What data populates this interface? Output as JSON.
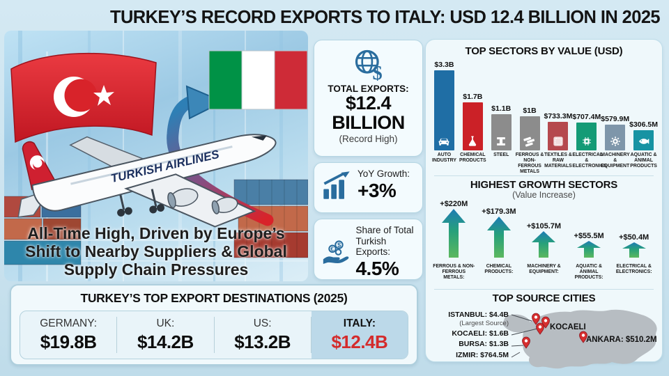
{
  "title": "TURKEY’S RECORD EXPORTS TO ITALY: USD 12.4 BILLION IN 2025",
  "colors": {
    "page_bg": "#cde4f0",
    "accent_red": "#d42b2b",
    "steel_blue": "#2a6d9e",
    "panel_bg": "#eff8fb",
    "panel_border": "#bedde9",
    "map_gray": "#b7bdc2",
    "pin_red": "#d62f2f"
  },
  "hero": {
    "tagline": "All-Time High, Driven by Europe’s Shift to Nearby Suppliers & Global Supply Chain Pressures",
    "plane_text": "TURKISH AIRLINES",
    "icons": [
      "turkey-flag-icon",
      "italy-flag-icon",
      "curved-arrow-icon",
      "airplane-icon",
      "cargo-containers-icon"
    ]
  },
  "stats": [
    {
      "label": "TOTAL EXPORTS:",
      "value_line1": "$12.4",
      "value_line2": "BILLION",
      "note": "(Record High)",
      "icon": "globe-dollar-icon"
    },
    {
      "label": "YoY Growth:",
      "value": "+3%",
      "icon": "growth-chart-icon"
    },
    {
      "label_line1": "Share of Total",
      "label_line2": "Turkish Exports:",
      "value": "4.5%",
      "icon": "hand-coins-icon"
    }
  ],
  "destinations": {
    "title": "TURKEY’S TOP EXPORT DESTINATIONS (2025)",
    "items": [
      {
        "label": "GERMANY:",
        "value": "$19.8B",
        "highlight": false
      },
      {
        "label": "UK:",
        "value": "$14.2B",
        "highlight": false
      },
      {
        "label": "US:",
        "value": "$13.2B",
        "highlight": false
      },
      {
        "label": "ITALY:",
        "value": "$12.4B",
        "highlight": true
      }
    ]
  },
  "chart_data": [
    {
      "type": "bar",
      "title": "TOP SECTORS BY VALUE (USD)",
      "categories": [
        "AUTO INDUSTRY",
        "CHEMICAL PRODUCTS",
        "STEEL",
        "FERROUS & NON-FERROUS METALS",
        "TEXTILES & RAW MATERIALS",
        "ELECTRICAL & ELECTRONICS",
        "MACHINERY & EQUIPMENT",
        "AQUATIC & ANIMAL PRODUCTS"
      ],
      "values_usd_millions": [
        3300,
        1700,
        1100,
        1000,
        733.3,
        707.4,
        579.9,
        306.5
      ],
      "value_labels": [
        "$3.3B",
        "$1.7B",
        "$1.1B",
        "$1B",
        "$733.3M",
        "$707.4M",
        "$579.9M",
        "$306.5M"
      ],
      "bar_colors": [
        "#1f6ea5",
        "#cb2127",
        "#8c8c8c",
        "#8c8c8c",
        "#b5494e",
        "#149b76",
        "#7e96aa",
        "#1793a3"
      ],
      "icons": [
        "car-icon",
        "flask-icon",
        "steel-beam-icon",
        "metal-ingots-icon",
        "textile-icon",
        "chip-icon",
        "gear-icon",
        "fish-icon"
      ],
      "ylim": [
        0,
        3300
      ],
      "grid": false,
      "legend": false
    },
    {
      "type": "bar",
      "title": "HIGHEST GROWTH SECTORS",
      "subtitle": "(Value Increase)",
      "categories": [
        "FERROUS & NON-FERROUS METALS:",
        "CHEMICAL PRODUCTS:",
        "MACHINERY & EQUIPMENT:",
        "AQUATIC & ANIMAL PRODUCTS:",
        "ELECTRICAL & ELECTRONICS:"
      ],
      "values_usd_millions": [
        220,
        179.3,
        105.7,
        55.5,
        50.4
      ],
      "value_labels": [
        "+$220M",
        "+$179.3M",
        "+$105.7M",
        "+$55.5M",
        "+$50.4M"
      ],
      "marker": "gradient-up-arrow",
      "ylim": [
        0,
        220
      ],
      "grid": false,
      "legend": false
    }
  ],
  "cities": {
    "title": "TOP SOURCE CITIES",
    "items": [
      {
        "label": "ISTANBUL: $4.4B",
        "note": "(Largest Source)"
      },
      {
        "label": "KOCAELI: $1.6B"
      },
      {
        "label": "BURSA: $1.3B"
      },
      {
        "label": "IZMIR: $764.5M"
      }
    ],
    "map_labels": [
      {
        "label": "KOCAELI"
      },
      {
        "label": "ANKARA: $510.2M"
      }
    ]
  }
}
